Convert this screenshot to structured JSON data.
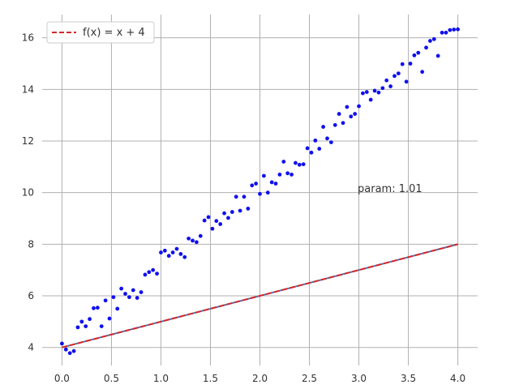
{
  "chart_data": {
    "type": "scatter",
    "title": "",
    "xlabel": "",
    "ylabel": "",
    "xlim": [
      -0.2,
      4.2
    ],
    "ylim": [
      3.3,
      16.9
    ],
    "xticks": [
      0.0,
      0.5,
      1.0,
      1.5,
      2.0,
      2.5,
      3.0,
      3.5,
      4.0
    ],
    "xtick_labels": [
      "0.0",
      "0.5",
      "1.0",
      "1.5",
      "2.0",
      "2.5",
      "3.0",
      "3.5",
      "4.0"
    ],
    "yticks": [
      4,
      6,
      8,
      10,
      12,
      14,
      16
    ],
    "ytick_labels": [
      "4",
      "6",
      "8",
      "10",
      "12",
      "14",
      "16"
    ],
    "grid": true,
    "legend_position": "top-left",
    "legend": [
      {
        "label": "f(x) = x + 4",
        "style": "dashed",
        "color": "#d62728"
      }
    ],
    "annotation": "param: 1.01",
    "lines": [
      {
        "x": [
          0,
          4
        ],
        "y": [
          4,
          8
        ],
        "color": "#4c72b0",
        "style": "solid"
      },
      {
        "x": [
          0,
          4
        ],
        "y": [
          4,
          8
        ],
        "color": "#d62728",
        "style": "dashed"
      }
    ],
    "points": {
      "color": "#1010ee",
      "x": [
        0.0,
        0.04,
        0.08,
        0.12,
        0.16,
        0.2,
        0.24,
        0.28,
        0.32,
        0.36,
        0.4,
        0.44,
        0.48,
        0.52,
        0.56,
        0.6,
        0.64,
        0.68,
        0.72,
        0.76,
        0.8,
        0.84,
        0.88,
        0.92,
        0.96,
        1.0,
        1.04,
        1.08,
        1.12,
        1.16,
        1.2,
        1.24,
        1.28,
        1.32,
        1.36,
        1.4,
        1.44,
        1.48,
        1.52,
        1.56,
        1.6,
        1.64,
        1.68,
        1.72,
        1.76,
        1.8,
        1.84,
        1.88,
        1.92,
        1.96,
        2.0,
        2.04,
        2.08,
        2.12,
        2.16,
        2.2,
        2.24,
        2.28,
        2.32,
        2.36,
        2.4,
        2.44,
        2.48,
        2.52,
        2.56,
        2.6,
        2.64,
        2.68,
        2.72,
        2.76,
        2.8,
        2.84,
        2.88,
        2.92,
        2.96,
        3.0,
        3.04,
        3.08,
        3.12,
        3.16,
        3.2,
        3.24,
        3.28,
        3.32,
        3.36,
        3.4,
        3.44,
        3.48,
        3.52,
        3.56,
        3.6,
        3.64,
        3.68,
        3.72,
        3.76,
        3.8,
        3.84,
        3.88,
        3.92,
        3.96,
        4.0
      ],
      "y": [
        4.15,
        3.92,
        3.78,
        3.86,
        4.78,
        5.0,
        4.82,
        5.1,
        5.52,
        5.54,
        4.82,
        5.82,
        5.12,
        5.95,
        5.5,
        6.28,
        6.08,
        5.95,
        6.22,
        5.92,
        6.14,
        6.82,
        6.92,
        7.0,
        6.86,
        7.68,
        7.75,
        7.55,
        7.68,
        7.82,
        7.62,
        7.5,
        8.22,
        8.14,
        8.08,
        8.32,
        8.92,
        9.05,
        8.6,
        8.9,
        8.78,
        9.2,
        9.02,
        9.25,
        9.84,
        9.3,
        9.84,
        9.38,
        10.28,
        10.35,
        9.95,
        10.65,
        10.0,
        10.4,
        10.35,
        10.7,
        11.2,
        10.75,
        10.7,
        11.15,
        11.08,
        11.1,
        11.72,
        11.55,
        12.02,
        11.7,
        12.55,
        12.1,
        11.95,
        12.62,
        13.05,
        12.7,
        13.32,
        12.95,
        13.05,
        13.35,
        13.85,
        13.9,
        13.6,
        13.95,
        13.88,
        14.05,
        14.35,
        14.12,
        14.52,
        14.62,
        14.98,
        14.3,
        15.0,
        15.32,
        15.42,
        14.68,
        15.62,
        15.88,
        15.95,
        15.3,
        16.2,
        16.2,
        16.3,
        16.32,
        16.33
      ]
    }
  }
}
